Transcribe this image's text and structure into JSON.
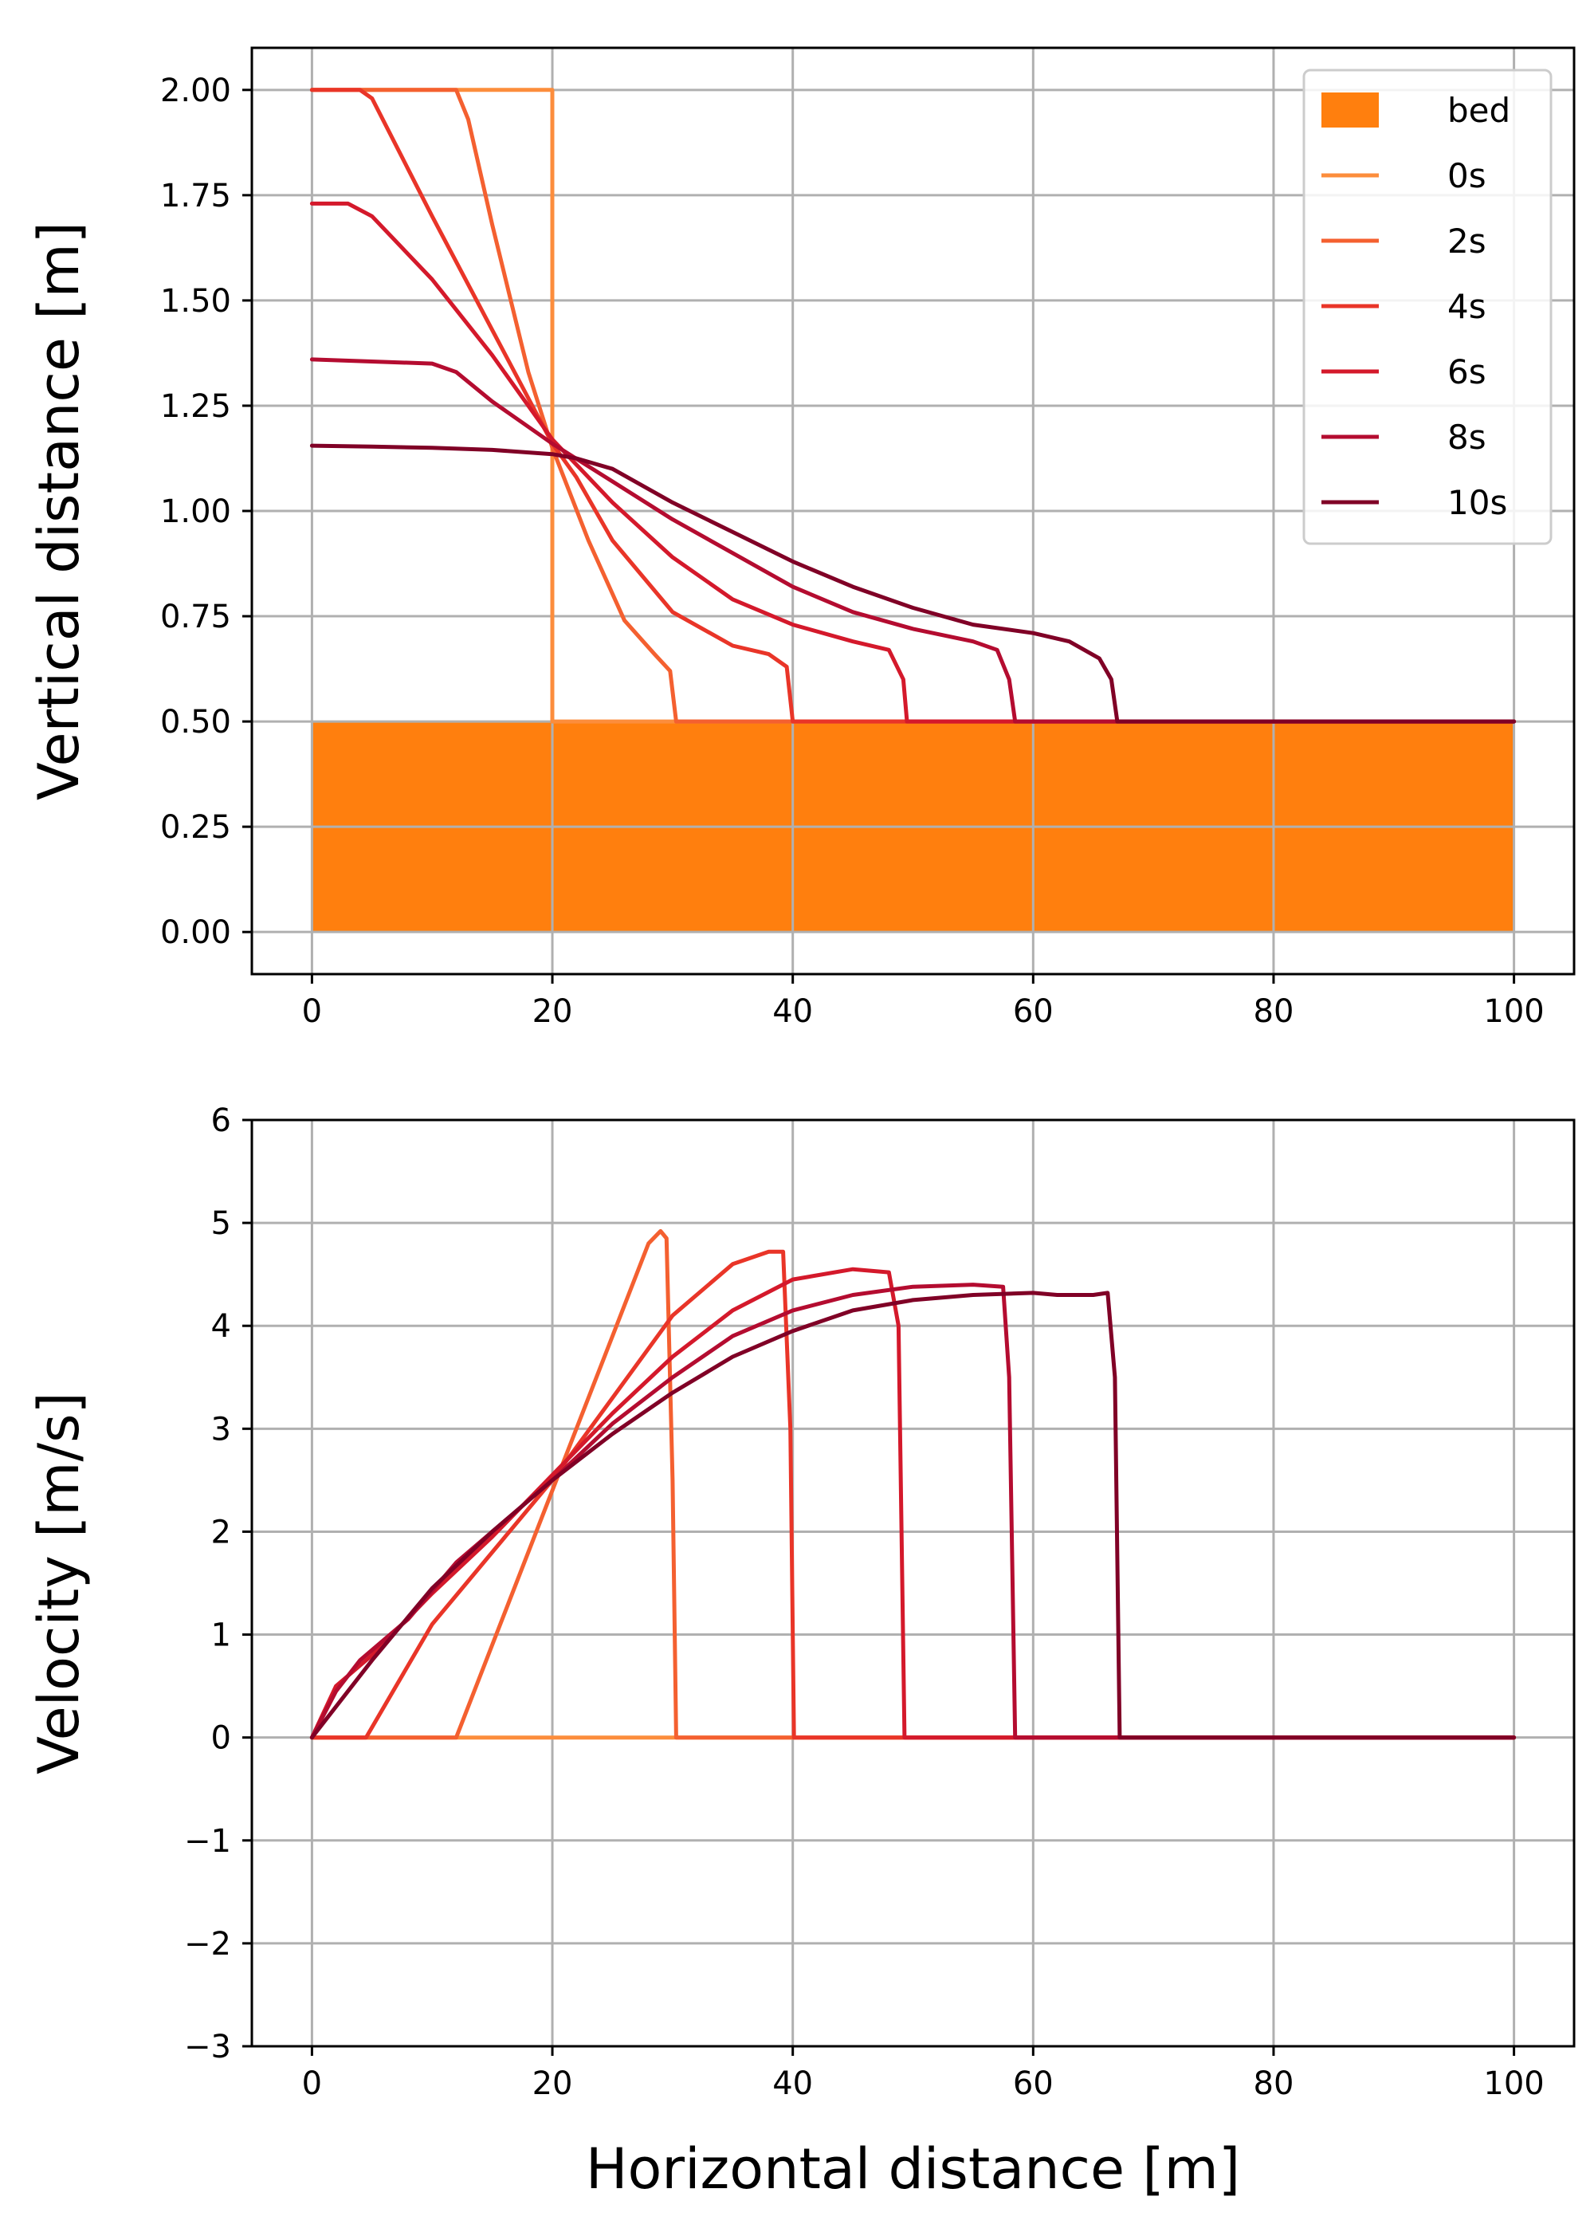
{
  "chart_data": [
    {
      "type": "line",
      "title": "",
      "xlabel": "",
      "ylabel": "Vertical distance [m]",
      "xlim": [
        -5,
        105
      ],
      "ylim": [
        -0.1,
        2.1
      ],
      "xticks": [
        0,
        20,
        40,
        60,
        80,
        100
      ],
      "xtick_labels": [
        "0",
        "20",
        "40",
        "60",
        "80",
        "100"
      ],
      "yticks": [
        0.0,
        0.25,
        0.5,
        0.75,
        1.0,
        1.25,
        1.5,
        1.75,
        2.0
      ],
      "ytick_labels": [
        "0.00",
        "0.25",
        "0.50",
        "0.75",
        "1.00",
        "1.25",
        "1.50",
        "1.75",
        "2.00"
      ],
      "grid": true,
      "legend_position": "top-right",
      "bed": {
        "name": "bed",
        "x": [
          0,
          100
        ],
        "bottom": 0.0,
        "top": 0.5,
        "color": "#ff7f0e"
      },
      "series": [
        {
          "name": "0s",
          "color": "#fc8d3c",
          "x": [
            0,
            20,
            20,
            100
          ],
          "y": [
            2.0,
            2.0,
            0.5,
            0.5
          ]
        },
        {
          "name": "2s",
          "color": "#f46030",
          "x": [
            0,
            12,
            13,
            15,
            18,
            20,
            23,
            26,
            28.5,
            29.8,
            30.3,
            100
          ],
          "y": [
            2.0,
            2.0,
            1.93,
            1.68,
            1.33,
            1.15,
            0.93,
            0.74,
            0.66,
            0.62,
            0.5,
            0.5
          ]
        },
        {
          "name": "4s",
          "color": "#e93528",
          "x": [
            0,
            4,
            5,
            10,
            15,
            20,
            22,
            25,
            30,
            35,
            38,
            39.5,
            40,
            100
          ],
          "y": [
            2.0,
            2.0,
            1.98,
            1.7,
            1.43,
            1.16,
            1.08,
            0.93,
            0.76,
            0.68,
            0.66,
            0.63,
            0.5,
            0.5
          ]
        },
        {
          "name": "6s",
          "color": "#d4192b",
          "x": [
            0,
            3,
            5,
            10,
            15,
            20,
            22,
            25,
            30,
            35,
            40,
            45,
            48,
            49.2,
            49.5,
            100
          ],
          "y": [
            1.73,
            1.73,
            1.7,
            1.55,
            1.37,
            1.17,
            1.11,
            1.02,
            0.89,
            0.79,
            0.73,
            0.69,
            0.67,
            0.6,
            0.5,
            0.5
          ]
        },
        {
          "name": "8s",
          "color": "#b40c30",
          "x": [
            0,
            10,
            12,
            15,
            20,
            25,
            30,
            35,
            40,
            45,
            50,
            55,
            57,
            58,
            58.5,
            100
          ],
          "y": [
            1.36,
            1.35,
            1.33,
            1.26,
            1.16,
            1.07,
            0.98,
            0.9,
            0.82,
            0.76,
            0.72,
            0.69,
            0.67,
            0.6,
            0.5,
            0.5
          ]
        },
        {
          "name": "10s",
          "color": "#800026",
          "x": [
            0,
            5,
            10,
            15,
            20,
            22,
            25,
            30,
            35,
            40,
            45,
            50,
            55,
            60,
            63,
            65.5,
            66.5,
            67,
            100
          ],
          "y": [
            1.155,
            1.153,
            1.15,
            1.145,
            1.135,
            1.125,
            1.1,
            1.02,
            0.95,
            0.88,
            0.82,
            0.77,
            0.73,
            0.71,
            0.69,
            0.65,
            0.6,
            0.5,
            0.5
          ]
        }
      ]
    },
    {
      "type": "line",
      "title": "",
      "xlabel": "Horizontal distance [m]",
      "ylabel": "Velocity [m/s]",
      "xlim": [
        -5,
        105
      ],
      "ylim": [
        -3,
        6
      ],
      "xticks": [
        0,
        20,
        40,
        60,
        80,
        100
      ],
      "xtick_labels": [
        "0",
        "20",
        "40",
        "60",
        "80",
        "100"
      ],
      "yticks": [
        -3,
        -2,
        -1,
        0,
        1,
        2,
        3,
        4,
        5,
        6
      ],
      "ytick_labels": [
        "−3",
        "−2",
        "−1",
        "0",
        "1",
        "2",
        "3",
        "4",
        "5",
        "6"
      ],
      "grid": true,
      "series": [
        {
          "name": "0s",
          "color": "#fc8d3c",
          "x": [
            0,
            100
          ],
          "y": [
            0,
            0
          ]
        },
        {
          "name": "2s",
          "color": "#f46030",
          "x": [
            0,
            12,
            15,
            20,
            25,
            28,
            29,
            29.5,
            30,
            30.3,
            100
          ],
          "y": [
            0,
            0,
            0.9,
            2.4,
            3.9,
            4.8,
            4.92,
            4.85,
            2.5,
            0,
            0
          ]
        },
        {
          "name": "4s",
          "color": "#e93528",
          "x": [
            0,
            4.5,
            10,
            20,
            25,
            30,
            35,
            38,
            39.2,
            39.8,
            40.1,
            100
          ],
          "y": [
            0,
            0,
            1.1,
            2.5,
            3.3,
            4.1,
            4.6,
            4.72,
            4.72,
            3.0,
            0,
            0
          ]
        },
        {
          "name": "6s",
          "color": "#d4192b",
          "x": [
            0,
            2,
            5,
            10,
            15,
            20,
            25,
            30,
            35,
            40,
            45,
            48,
            48.8,
            49.3,
            100
          ],
          "y": [
            0,
            0.5,
            0.8,
            1.4,
            1.95,
            2.55,
            3.15,
            3.7,
            4.15,
            4.45,
            4.55,
            4.52,
            4.0,
            0,
            0
          ]
        },
        {
          "name": "8s",
          "color": "#b40c30",
          "x": [
            0,
            2,
            4,
            8,
            12,
            16,
            20,
            25,
            30,
            35,
            40,
            45,
            50,
            55,
            57.5,
            58,
            58.5,
            100
          ],
          "y": [
            0,
            0.45,
            0.75,
            1.15,
            1.7,
            2.1,
            2.5,
            3.05,
            3.5,
            3.9,
            4.15,
            4.3,
            4.38,
            4.4,
            4.38,
            3.5,
            0,
            0
          ]
        },
        {
          "name": "10s",
          "color": "#800026",
          "x": [
            0,
            5,
            10,
            15,
            20,
            25,
            30,
            35,
            40,
            45,
            50,
            55,
            60,
            62,
            65,
            66.2,
            66.8,
            67.2,
            100
          ],
          "y": [
            0,
            0.75,
            1.45,
            2.0,
            2.5,
            2.95,
            3.35,
            3.7,
            3.95,
            4.15,
            4.25,
            4.3,
            4.32,
            4.3,
            4.3,
            4.32,
            3.5,
            0,
            0
          ]
        }
      ]
    }
  ]
}
